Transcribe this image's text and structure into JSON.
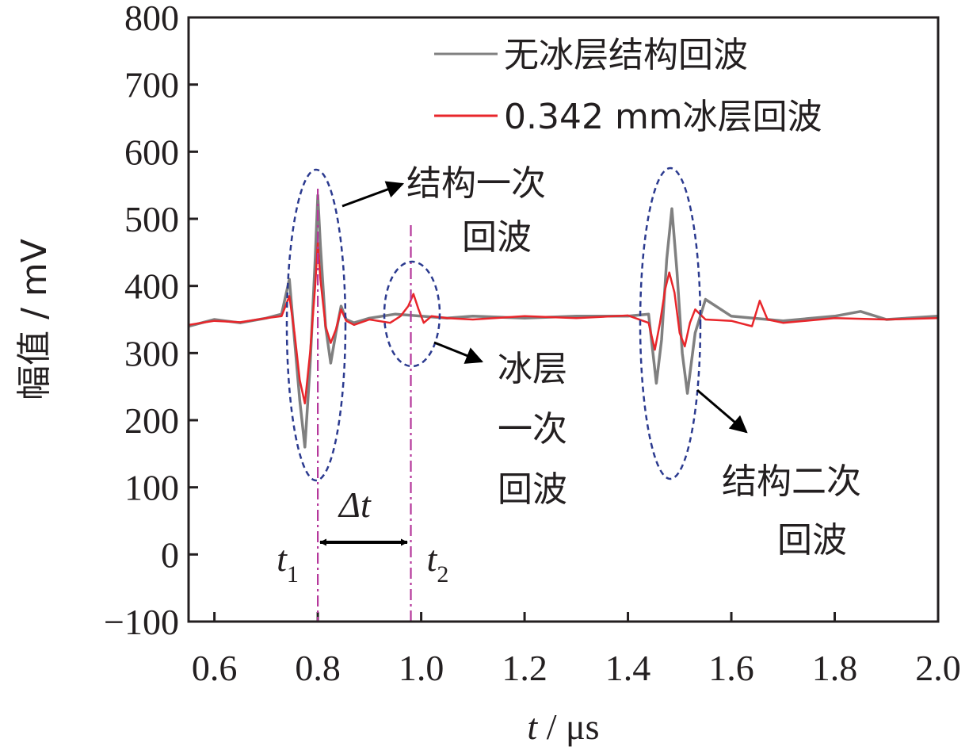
{
  "chart_data": {
    "type": "line",
    "xlabel": {
      "var": "t",
      "sep": " / ",
      "unit": "μs"
    },
    "ylabel": "幅值 / mV",
    "xlim": [
      0.55,
      2.0
    ],
    "ylim": [
      -100,
      800
    ],
    "x_ticks": [
      0.6,
      0.8,
      1.0,
      1.2,
      1.4,
      1.6,
      1.8,
      2.0
    ],
    "x_tick_labels": [
      "0.6",
      "0.8",
      "1.0",
      "1.2",
      "1.4",
      "1.6",
      "1.8",
      "2.0"
    ],
    "y_ticks": [
      -100,
      0,
      100,
      200,
      300,
      400,
      500,
      600,
      700,
      800
    ],
    "y_tick_labels": [
      "−100",
      "0",
      "100",
      "200",
      "300",
      "400",
      "500",
      "600",
      "700",
      "800"
    ],
    "grid": false,
    "legend_position": "top-right",
    "series": [
      {
        "name": "无冰层结构回波",
        "color": "#808080",
        "x": [
          0.55,
          0.6,
          0.65,
          0.7,
          0.73,
          0.745,
          0.755,
          0.765,
          0.775,
          0.785,
          0.795,
          0.8,
          0.805,
          0.815,
          0.825,
          0.835,
          0.845,
          0.855,
          0.87,
          0.9,
          0.95,
          1.0,
          1.05,
          1.1,
          1.2,
          1.3,
          1.4,
          1.44,
          1.455,
          1.465,
          1.475,
          1.485,
          1.495,
          1.505,
          1.515,
          1.53,
          1.55,
          1.6,
          1.7,
          1.8,
          1.85,
          1.9,
          2.0
        ],
        "y": [
          340,
          350,
          345,
          352,
          358,
          410,
          320,
          230,
          160,
          280,
          440,
          535,
          460,
          340,
          285,
          330,
          370,
          350,
          345,
          352,
          358,
          355,
          352,
          355,
          352,
          355,
          355,
          358,
          255,
          320,
          440,
          515,
          420,
          300,
          240,
          330,
          380,
          355,
          348,
          355,
          362,
          350,
          355
        ]
      },
      {
        "name": "0.342 mm冰层回波",
        "color": "#e8262b",
        "x": [
          0.55,
          0.6,
          0.65,
          0.7,
          0.73,
          0.745,
          0.755,
          0.765,
          0.775,
          0.785,
          0.795,
          0.8,
          0.805,
          0.815,
          0.825,
          0.835,
          0.845,
          0.855,
          0.87,
          0.9,
          0.94,
          0.96,
          0.975,
          0.985,
          0.995,
          1.005,
          1.02,
          1.05,
          1.1,
          1.2,
          1.3,
          1.4,
          1.44,
          1.452,
          1.462,
          1.472,
          1.48,
          1.49,
          1.5,
          1.51,
          1.52,
          1.53,
          1.55,
          1.6,
          1.64,
          1.655,
          1.67,
          1.7,
          1.8,
          1.9,
          2.0
        ],
        "y": [
          342,
          348,
          346,
          352,
          355,
          385,
          330,
          260,
          225,
          300,
          400,
          465,
          410,
          340,
          315,
          335,
          365,
          348,
          342,
          350,
          345,
          355,
          370,
          388,
          365,
          345,
          355,
          352,
          350,
          355,
          352,
          356,
          345,
          305,
          345,
          395,
          420,
          390,
          330,
          310,
          345,
          365,
          350,
          348,
          340,
          378,
          350,
          345,
          352,
          350,
          352
        ]
      }
    ],
    "markers": [
      {
        "x": 0.8,
        "label": "t",
        "sub": "1",
        "color": "#b5379b"
      },
      {
        "x": 0.98,
        "label": "t",
        "sub": "2",
        "color": "#b5379b"
      }
    ],
    "interval_label": "Δt",
    "annotations": [
      {
        "lines": [
          "结构一次",
          "回波"
        ]
      },
      {
        "lines": [
          "冰层",
          "一次",
          "回波"
        ]
      },
      {
        "lines": [
          "结构二次",
          "回波"
        ]
      }
    ]
  }
}
